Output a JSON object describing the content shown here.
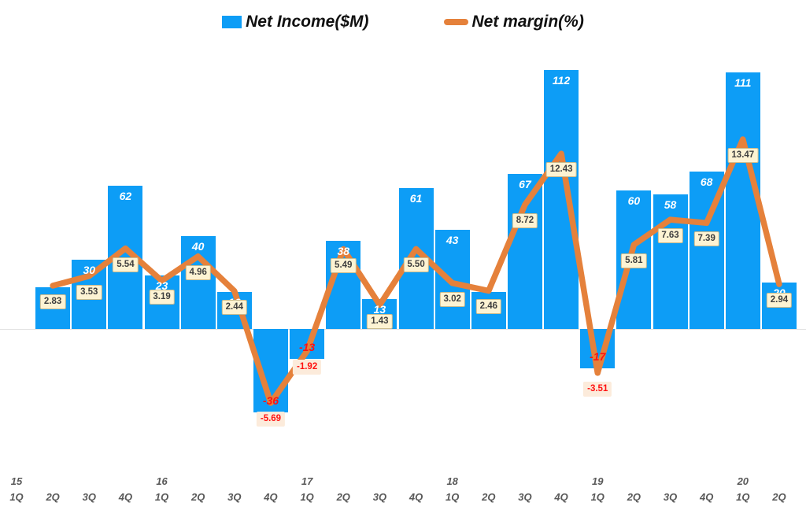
{
  "legend": {
    "net_income_label": "Net Income($M)",
    "net_margin_label": "Net margin(%)"
  },
  "colors": {
    "bar_blue": "#0D9DF6",
    "line_orange": "#E5813B",
    "label_box_bg": "#FDF3D3",
    "label_box_border": "#CBBC8E",
    "label_box_text": "#3F3F3F",
    "negative_box_bg": "#FCEBDB",
    "negative_text": "#FF1111",
    "bar_label_text": "#FFFFFF",
    "axis_text": "#595959",
    "baseline_gray": "#E2E2E2"
  },
  "chart_data": {
    "type": "combo",
    "title": "",
    "legend_position": "top",
    "gridlines": false,
    "categories": [
      {
        "year": "15",
        "q": "1Q"
      },
      {
        "year": "",
        "q": "2Q"
      },
      {
        "year": "",
        "q": "3Q"
      },
      {
        "year": "",
        "q": "4Q"
      },
      {
        "year": "16",
        "q": "1Q"
      },
      {
        "year": "",
        "q": "2Q"
      },
      {
        "year": "",
        "q": "3Q"
      },
      {
        "year": "",
        "q": "4Q"
      },
      {
        "year": "17",
        "q": "1Q"
      },
      {
        "year": "",
        "q": "2Q"
      },
      {
        "year": "",
        "q": "3Q"
      },
      {
        "year": "",
        "q": "4Q"
      },
      {
        "year": "18",
        "q": "1Q"
      },
      {
        "year": "",
        "q": "2Q"
      },
      {
        "year": "",
        "q": "3Q"
      },
      {
        "year": "",
        "q": "4Q"
      },
      {
        "year": "19",
        "q": "1Q"
      },
      {
        "year": "",
        "q": "2Q"
      },
      {
        "year": "",
        "q": "3Q"
      },
      {
        "year": "",
        "q": "4Q"
      },
      {
        "year": "20",
        "q": "1Q"
      },
      {
        "year": "",
        "q": "2Q"
      }
    ],
    "series": [
      {
        "name": "Net Income($M)",
        "type": "bar",
        "values": [
          null,
          18,
          30,
          62,
          23,
          40,
          16,
          -36,
          -13,
          38,
          13,
          61,
          43,
          16,
          67,
          112,
          -17,
          60,
          58,
          68,
          111,
          20
        ],
        "labels": [
          "",
          "",
          "30",
          "62",
          "23",
          "40",
          "16",
          "-36",
          "-13",
          "38",
          "13",
          "61",
          "43",
          "",
          "67",
          "112",
          "-17",
          "60",
          "58",
          "68",
          "111",
          "20"
        ],
        "axis_range_est": [
          -48,
          117
        ]
      },
      {
        "name": "Net margin(%)",
        "type": "line",
        "values": [
          null,
          2.83,
          3.53,
          5.54,
          3.19,
          4.96,
          2.44,
          -5.69,
          -1.92,
          5.49,
          1.43,
          5.5,
          3.02,
          2.46,
          8.72,
          12.43,
          -3.51,
          5.81,
          7.63,
          7.39,
          13.47,
          2.94
        ],
        "labels": [
          "",
          "2.83",
          "3.53",
          "5.54",
          "3.19",
          "4.96",
          "2.44",
          "-5.69",
          "-1.92",
          "5.49",
          "1.43",
          "5.50",
          "3.02",
          "2.46",
          "8.72",
          "12.43",
          "-3.51",
          "5.81",
          "7.63",
          "7.39",
          "13.47",
          "2.94"
        ],
        "axis_range_est": [
          -8.4,
          19.3
        ]
      }
    ]
  }
}
